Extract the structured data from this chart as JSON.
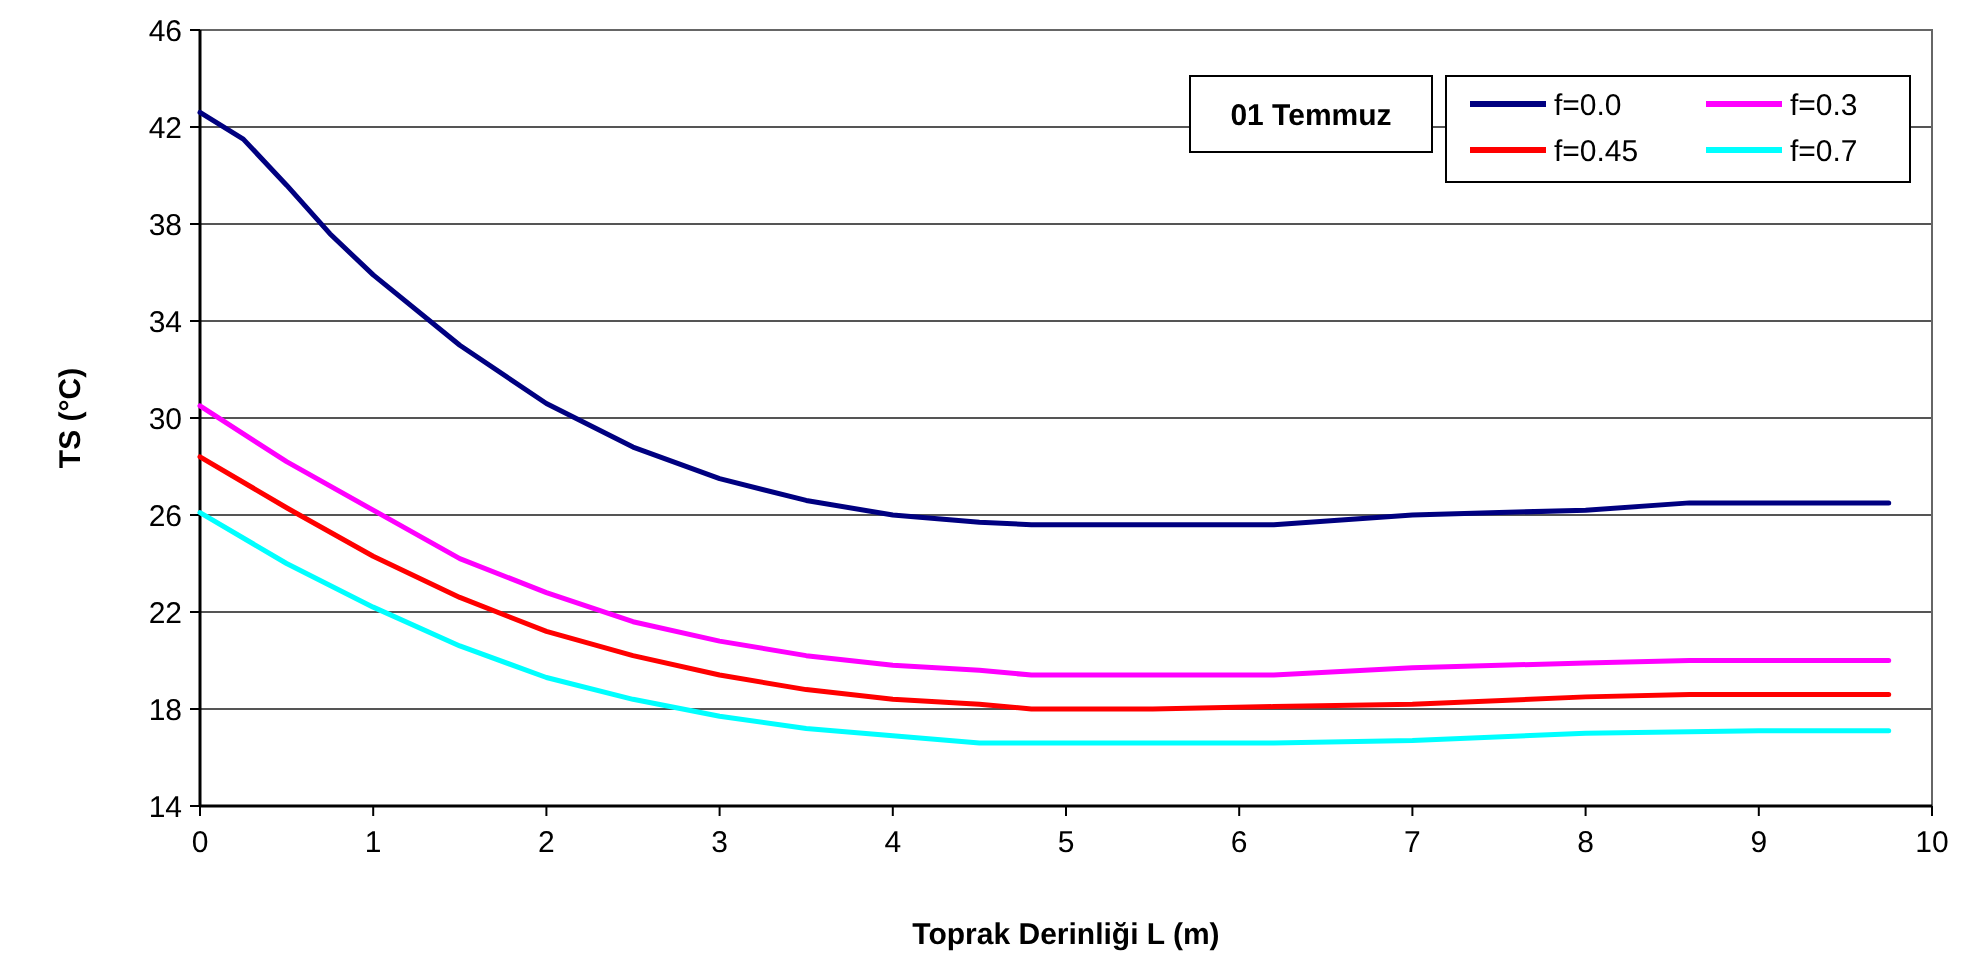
{
  "chart_data": {
    "type": "line",
    "xlabel": "Toprak Derinliği L (m)",
    "ylabel": "TS (°C)",
    "annotations": [
      "01 Temmuz"
    ],
    "xlim": [
      0,
      10
    ],
    "xticks": [
      0,
      1,
      2,
      3,
      4,
      5,
      6,
      7,
      8,
      9,
      10
    ],
    "ylim": [
      14,
      46
    ],
    "yticks": [
      14,
      18,
      22,
      26,
      30,
      34,
      38,
      42,
      46
    ],
    "grid": "y",
    "legend": "top right",
    "marker": "none",
    "line_style": "solid",
    "series": [
      {
        "name": "f=0.0",
        "color": "#000080",
        "x": [
          0,
          0.25,
          0.5,
          0.75,
          1,
          1.5,
          2,
          2.5,
          3,
          3.5,
          4,
          4.5,
          4.8,
          6.2,
          7,
          7.5,
          8,
          8.6,
          9.75
        ],
        "values": [
          42.6,
          41.5,
          39.6,
          37.6,
          35.9,
          33.0,
          30.6,
          28.8,
          27.5,
          26.6,
          26.0,
          25.7,
          25.6,
          25.6,
          26.0,
          26.1,
          26.2,
          26.5,
          26.5
        ]
      },
      {
        "name": "f=0.3",
        "color": "#ff00ff",
        "x": [
          0,
          0.5,
          1,
          1.5,
          2,
          2.5,
          3,
          3.5,
          4,
          4.5,
          4.8,
          6.2,
          7,
          8,
          8.6,
          9.75
        ],
        "values": [
          30.5,
          28.2,
          26.2,
          24.2,
          22.8,
          21.6,
          20.8,
          20.2,
          19.8,
          19.6,
          19.4,
          19.4,
          19.7,
          19.9,
          20.0,
          20.0
        ]
      },
      {
        "name": "f=0.45",
        "color": "#ff0000",
        "x": [
          0,
          0.5,
          1,
          1.5,
          2,
          2.5,
          3,
          3.5,
          4,
          4.5,
          4.8,
          5.5,
          6.2,
          7,
          8,
          8.6,
          9.75
        ],
        "values": [
          28.4,
          26.3,
          24.3,
          22.6,
          21.2,
          20.2,
          19.4,
          18.8,
          18.4,
          18.2,
          18.0,
          18.0,
          18.1,
          18.2,
          18.5,
          18.6,
          18.6
        ]
      },
      {
        "name": "f=0.7",
        "color": "#00ffff",
        "x": [
          0,
          0.5,
          1,
          1.5,
          2,
          2.5,
          3,
          3.5,
          4,
          4.5,
          6.2,
          7,
          8,
          9,
          9.75
        ],
        "values": [
          26.1,
          24.0,
          22.2,
          20.6,
          19.3,
          18.4,
          17.7,
          17.2,
          16.9,
          16.6,
          16.6,
          16.7,
          17.0,
          17.1,
          17.1
        ]
      }
    ]
  }
}
